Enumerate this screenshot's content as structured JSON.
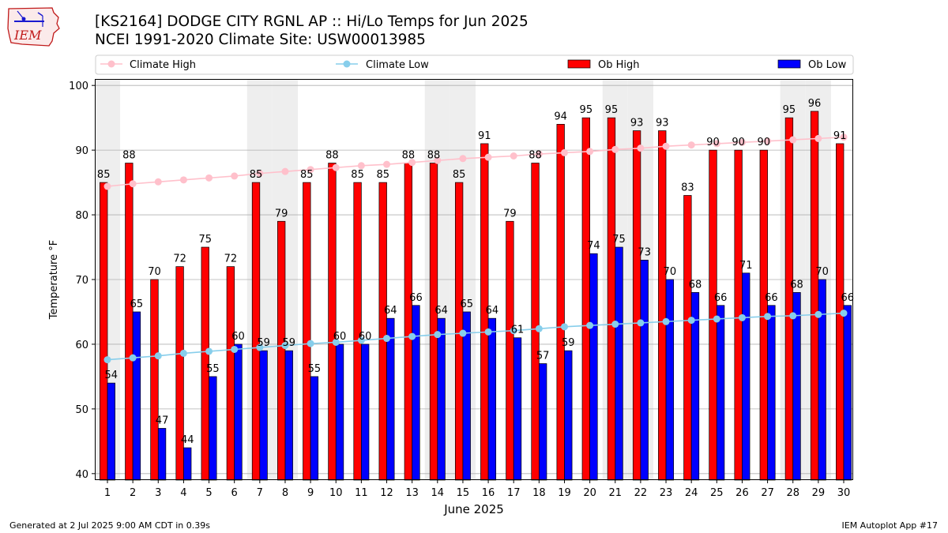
{
  "header": {
    "title_line1": "[KS2164] DODGE CITY RGNL AP :: Hi/Lo Temps for Jun 2025",
    "title_line2": "NCEI 1991-2020 Climate Site: USW00013985",
    "logo_text": "IEM"
  },
  "footer": {
    "generated": "Generated at 2 Jul 2025 9:00 AM CDT in 0.39s",
    "app": "IEM Autoplot App #17"
  },
  "colors": {
    "ob_high": "#ff0000",
    "ob_low": "#0000ff",
    "climate_high": "#ffc0cb",
    "climate_low": "#87ceeb",
    "weekend_shade": "#eeeeee",
    "grid": "#b0b0b0"
  },
  "chart_data": {
    "type": "bar",
    "title": "[KS2164] DODGE CITY RGNL AP :: Hi/Lo Temps for Jun 2025",
    "subtitle": "NCEI 1991-2020 Climate Site: USW00013985",
    "xlabel": "June 2025",
    "ylabel": "Temperature °F",
    "ylim": [
      39,
      101
    ],
    "yticks": [
      40,
      50,
      60,
      70,
      80,
      90,
      100
    ],
    "grid": true,
    "legend_position": "top",
    "categories": [
      "1",
      "2",
      "3",
      "4",
      "5",
      "6",
      "7",
      "8",
      "9",
      "10",
      "11",
      "12",
      "13",
      "14",
      "15",
      "16",
      "17",
      "18",
      "19",
      "20",
      "21",
      "22",
      "23",
      "24",
      "25",
      "26",
      "27",
      "28",
      "29",
      "30"
    ],
    "shaded_days": [
      "1",
      "7",
      "8",
      "14",
      "15",
      "21",
      "22",
      "28",
      "29"
    ],
    "series": [
      {
        "name": "Ob High",
        "kind": "bar",
        "color": "#ff0000",
        "values": [
          85,
          88,
          70,
          72,
          75,
          72,
          85,
          79,
          85,
          88,
          85,
          85,
          88,
          88,
          85,
          91,
          79,
          88,
          94,
          95,
          95,
          93,
          93,
          83,
          90,
          90,
          90,
          95,
          96,
          91
        ]
      },
      {
        "name": "Ob Low",
        "kind": "bar",
        "color": "#0000ff",
        "values": [
          54,
          65,
          47,
          44,
          55,
          60,
          59,
          59,
          55,
          60,
          60,
          64,
          66,
          64,
          65,
          64,
          61,
          57,
          59,
          74,
          75,
          73,
          70,
          68,
          66,
          71,
          66,
          68,
          70,
          66
        ]
      },
      {
        "name": "Climate High",
        "kind": "line",
        "color": "#ffc0cb",
        "values": [
          84.4,
          84.8,
          85.1,
          85.4,
          85.7,
          86.0,
          86.4,
          86.7,
          87.0,
          87.3,
          87.6,
          87.8,
          88.1,
          88.4,
          88.7,
          88.9,
          89.1,
          89.4,
          89.6,
          89.8,
          90.1,
          90.3,
          90.6,
          90.8,
          91.0,
          91.2,
          91.4,
          91.6,
          91.8,
          92.0
        ]
      },
      {
        "name": "Climate Low",
        "kind": "line",
        "color": "#87ceeb",
        "values": [
          57.6,
          57.9,
          58.2,
          58.6,
          58.9,
          59.2,
          59.5,
          59.8,
          60.1,
          60.3,
          60.6,
          60.9,
          61.2,
          61.5,
          61.7,
          61.9,
          62.1,
          62.4,
          62.7,
          62.9,
          63.1,
          63.3,
          63.5,
          63.7,
          63.9,
          64.1,
          64.3,
          64.4,
          64.6,
          64.8
        ]
      }
    ]
  }
}
